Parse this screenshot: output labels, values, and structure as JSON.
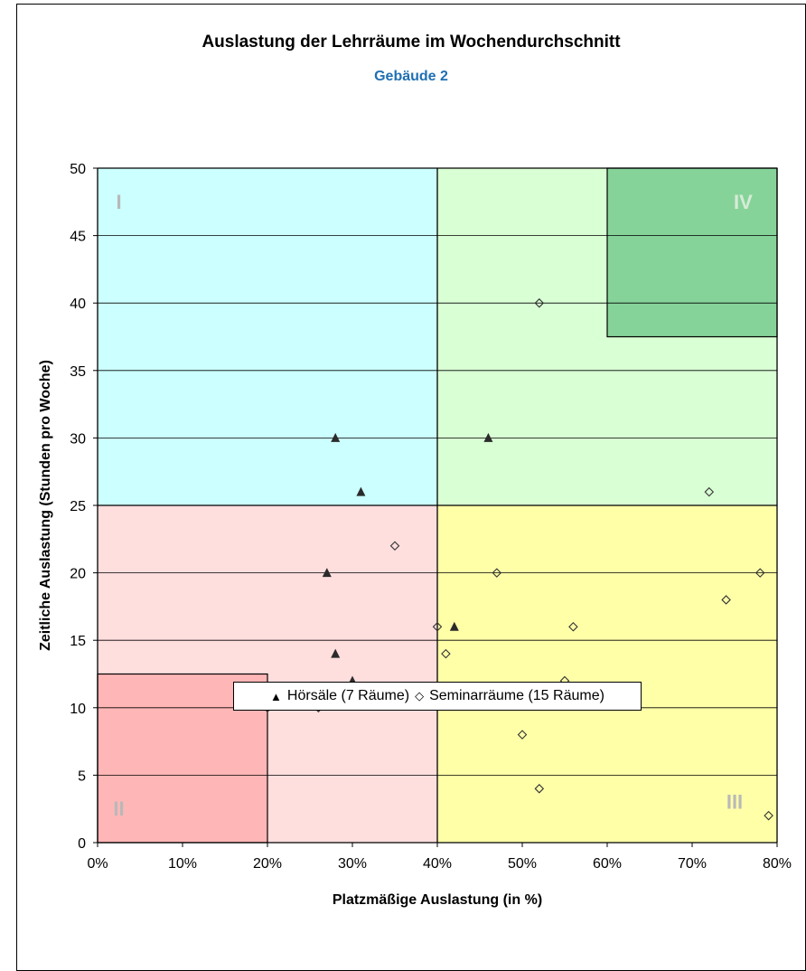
{
  "chart_data": {
    "type": "scatter",
    "title": "Auslastung der Lehrräume im Wochendurchschnitt",
    "subtitle": "Gebäude 2",
    "xlabel": "Platzmäßige Auslastung (in %)",
    "ylabel": "Zeitliche Auslastung (Stunden pro Woche)",
    "xlim": [
      0,
      80
    ],
    "ylim": [
      0,
      50
    ],
    "x_ticks": [
      "0%",
      "10%",
      "20%",
      "30%",
      "40%",
      "50%",
      "60%",
      "70%",
      "80%"
    ],
    "y_ticks": [
      "0",
      "5",
      "10",
      "15",
      "20",
      "25",
      "30",
      "35",
      "40",
      "45",
      "50"
    ],
    "grid": "horizontal",
    "regions": [
      {
        "label": "I",
        "x": [
          0,
          40
        ],
        "y": [
          25,
          50
        ],
        "color": "#ccffff"
      },
      {
        "label": "II",
        "x": [
          0,
          40
        ],
        "y": [
          0,
          25
        ],
        "color": "#ffdede"
      },
      {
        "label": "III",
        "x": [
          40,
          80
        ],
        "y": [
          0,
          25
        ],
        "color": "#ffffa8"
      },
      {
        "label": "IV",
        "x": [
          40,
          80
        ],
        "y": [
          25,
          50
        ],
        "color": "#d9ffd4"
      }
    ],
    "highlight_regions": [
      {
        "x": [
          0,
          20
        ],
        "y": [
          0,
          12.5
        ],
        "color": "#ffb6b6"
      },
      {
        "x": [
          60,
          80
        ],
        "y": [
          37.5,
          50
        ],
        "color": "#86d39a"
      }
    ],
    "series": [
      {
        "name": "Hörsäle (7 Räume)",
        "marker": "triangle",
        "color": "#2b2b2b",
        "points": [
          [
            28,
            30
          ],
          [
            31,
            26
          ],
          [
            46,
            30
          ],
          [
            27,
            20
          ],
          [
            42,
            16
          ],
          [
            28,
            14
          ],
          [
            30,
            12
          ]
        ]
      },
      {
        "name": "Seminarräume (15 Räume)",
        "marker": "diamond-open",
        "color": "#333333",
        "points": [
          [
            52,
            40
          ],
          [
            72,
            26
          ],
          [
            35,
            22
          ],
          [
            47,
            20
          ],
          [
            78,
            20
          ],
          [
            74,
            18
          ],
          [
            40,
            16
          ],
          [
            56,
            16
          ],
          [
            41,
            14
          ],
          [
            55,
            12
          ],
          [
            20,
            10
          ],
          [
            26,
            10
          ],
          [
            50,
            8
          ],
          [
            52,
            4
          ],
          [
            79,
            2
          ]
        ]
      }
    ],
    "legend": {
      "placement": "bottom",
      "items": [
        {
          "symbol": "▲",
          "label": "Hörsäle (7 Räume)"
        },
        {
          "symbol": "◇",
          "label": "Seminarräume (15 Räume)"
        }
      ]
    }
  }
}
